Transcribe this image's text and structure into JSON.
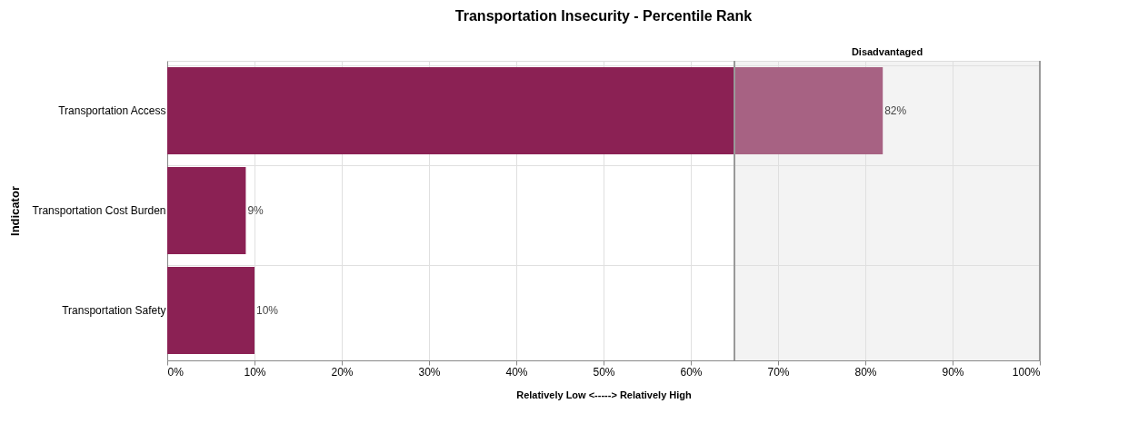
{
  "chart_data": {
    "type": "bar",
    "orientation": "horizontal",
    "title": "Transportation Insecurity - Percentile Rank",
    "xlabel": "Relatively Low <-----> Relatively High",
    "ylabel": "Indicator",
    "categories": [
      "Transportation Access",
      "Transportation Cost Burden",
      "Transportation Safety"
    ],
    "series": [
      {
        "color": "#8b2154",
        "values": [
          82,
          9,
          10
        ],
        "value_labels": [
          "82%",
          "9%",
          "10%"
        ]
      }
    ],
    "xlim": [
      0,
      100
    ],
    "xticks": [
      {
        "value": 0,
        "label": "0%"
      },
      {
        "value": 10,
        "label": "10%"
      },
      {
        "value": 20,
        "label": "20%"
      },
      {
        "value": 30,
        "label": "30%"
      },
      {
        "value": 40,
        "label": "40%"
      },
      {
        "value": 50,
        "label": "50%"
      },
      {
        "value": 60,
        "label": "60%"
      },
      {
        "value": 70,
        "label": "70%"
      },
      {
        "value": 80,
        "label": "80%"
      },
      {
        "value": 90,
        "label": "90%"
      },
      {
        "value": 100,
        "label": "100%"
      }
    ],
    "bands": [
      {
        "axis": "x",
        "from": 65,
        "to": 100,
        "label": "Disadvantaged",
        "color": "#dddddd"
      }
    ],
    "ref_lines": [
      {
        "axis": "x",
        "value": 65,
        "color": "#999999"
      },
      {
        "axis": "x",
        "value": 100,
        "color": "#999999"
      }
    ],
    "grid": true
  }
}
